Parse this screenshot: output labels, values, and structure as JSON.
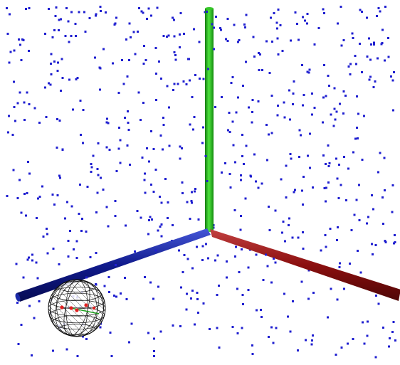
{
  "scene": {
    "background_color": "#ffffff",
    "point_cloud": {
      "color": "#1f1fd0",
      "count": 700,
      "seed": 7
    },
    "axes": {
      "x_axis": {
        "color": "#8b0f0f",
        "highlight": "#c43a3a"
      },
      "y_axis": {
        "color": "#21a81a",
        "highlight": "#5fe24f"
      },
      "z_axis": {
        "color": "#101a8c",
        "highlight": "#3a4bd6"
      }
    },
    "sphere_probe": {
      "wire_color": "#111111",
      "marker_color": "#e02020",
      "segment_color": "#1ca01c"
    }
  }
}
